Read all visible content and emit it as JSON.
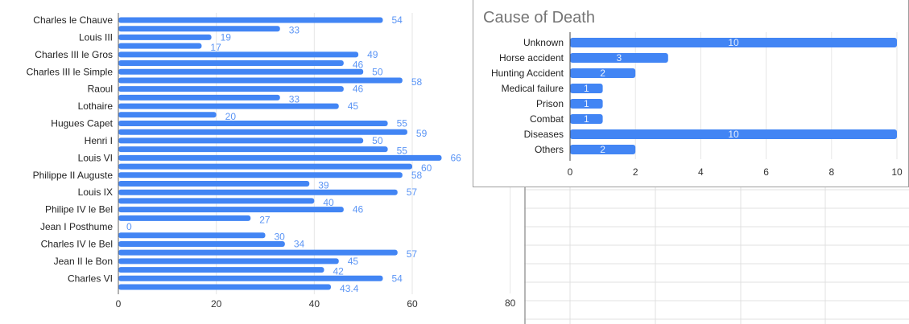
{
  "chart_data": [
    {
      "type": "bar",
      "orientation": "horizontal",
      "title": "",
      "category_labels": [
        "Charles le Chauve",
        "Louis III",
        "Charles III le Gros",
        "Charles III le Simple",
        "Raoul",
        "Lothaire",
        "Hugues Capet",
        "Henri I",
        "Louis VI",
        "Philippe II Auguste",
        "Louis IX",
        "Philipe IV le Bel",
        "Jean I Posthume",
        "Charles IV le Bel",
        "Jean II le Bon",
        "Charles VI"
      ],
      "values": [
        54,
        33,
        19,
        17,
        49,
        46,
        50,
        58,
        46,
        33,
        45,
        20,
        55,
        59,
        50,
        55,
        66,
        60,
        58,
        39,
        57,
        40,
        46,
        27,
        0,
        30,
        34,
        57,
        45,
        42,
        54,
        43.4
      ],
      "value_labels": [
        "54",
        "33",
        "19",
        "17",
        "49",
        "46",
        "50",
        "58",
        "46",
        "33",
        "45",
        "20",
        "55",
        "59",
        "50",
        "55",
        "66",
        "60",
        "58",
        "39",
        "57",
        "40",
        "46",
        "27",
        "0",
        "30",
        "34",
        "57",
        "45",
        "42",
        "54",
        "43.4"
      ],
      "xticks": [
        "0",
        "20",
        "40",
        "60",
        "80"
      ],
      "xlim": [
        0,
        80
      ],
      "grid": true,
      "bar_color": "#4285f4",
      "label_color": "#5b95f5"
    },
    {
      "type": "bar",
      "orientation": "horizontal",
      "title": "Cause of Death",
      "categories": [
        "Unknown",
        "Horse accident",
        "Hunting Accident",
        "Medical failure",
        "Prison",
        "Combat",
        "Diseases",
        "Others"
      ],
      "values": [
        10,
        3,
        2,
        1,
        1,
        1,
        10,
        2
      ],
      "value_labels": [
        "10",
        "3",
        "2",
        "1",
        "1",
        "1",
        "10",
        "2"
      ],
      "xticks": [
        "0",
        "2",
        "4",
        "6",
        "8",
        "10"
      ],
      "xlim": [
        0,
        10
      ],
      "grid": true,
      "bar_color": "#4285f4"
    }
  ]
}
